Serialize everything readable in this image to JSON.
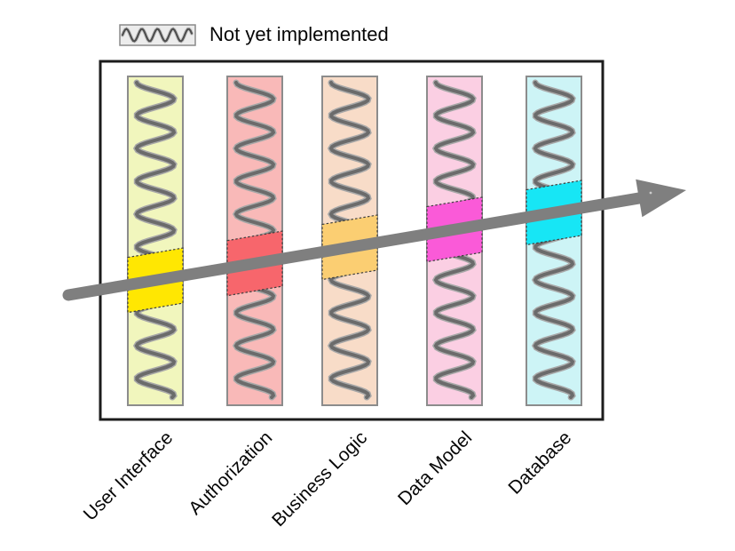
{
  "legend": {
    "label": "Not yet implemented",
    "swatch_icon": "squiggle-pattern",
    "box_fill": "#ececec",
    "box_border": "#8a8a8a",
    "squiggle_color": "#4f4f4f",
    "squiggle_halo": "#c9c9c9"
  },
  "diagram": {
    "type": "vertical-slice-architecture",
    "arrow_color": "#7f7f7f",
    "box_border_color": "#1c1c1c",
    "column_border_color": "#8c8c8c",
    "squiggle_color": "#6b6b6b",
    "squiggle_halo": "#a8a8a8",
    "segment_border_color": "#3f3f3f",
    "columns": [
      {
        "label": "User Interface",
        "fill": "#f1f6bd",
        "accent": "#ffe702"
      },
      {
        "label": "Authorization",
        "fill": "#f9b9b8",
        "accent": "#f7666c"
      },
      {
        "label": "Business Logic",
        "fill": "#f8dcc8",
        "accent": "#fbce72"
      },
      {
        "label": "Data Model",
        "fill": "#fbcfe3",
        "accent": "#fa5ad8"
      },
      {
        "label": "Database",
        "fill": "#2ff0fa",
        "accent": "#17e6f5"
      }
    ],
    "column_fills_note": "columns.4.fill corrected below in data_fix",
    "data_fix": {
      "db_fill": "#cdf4f6"
    }
  }
}
